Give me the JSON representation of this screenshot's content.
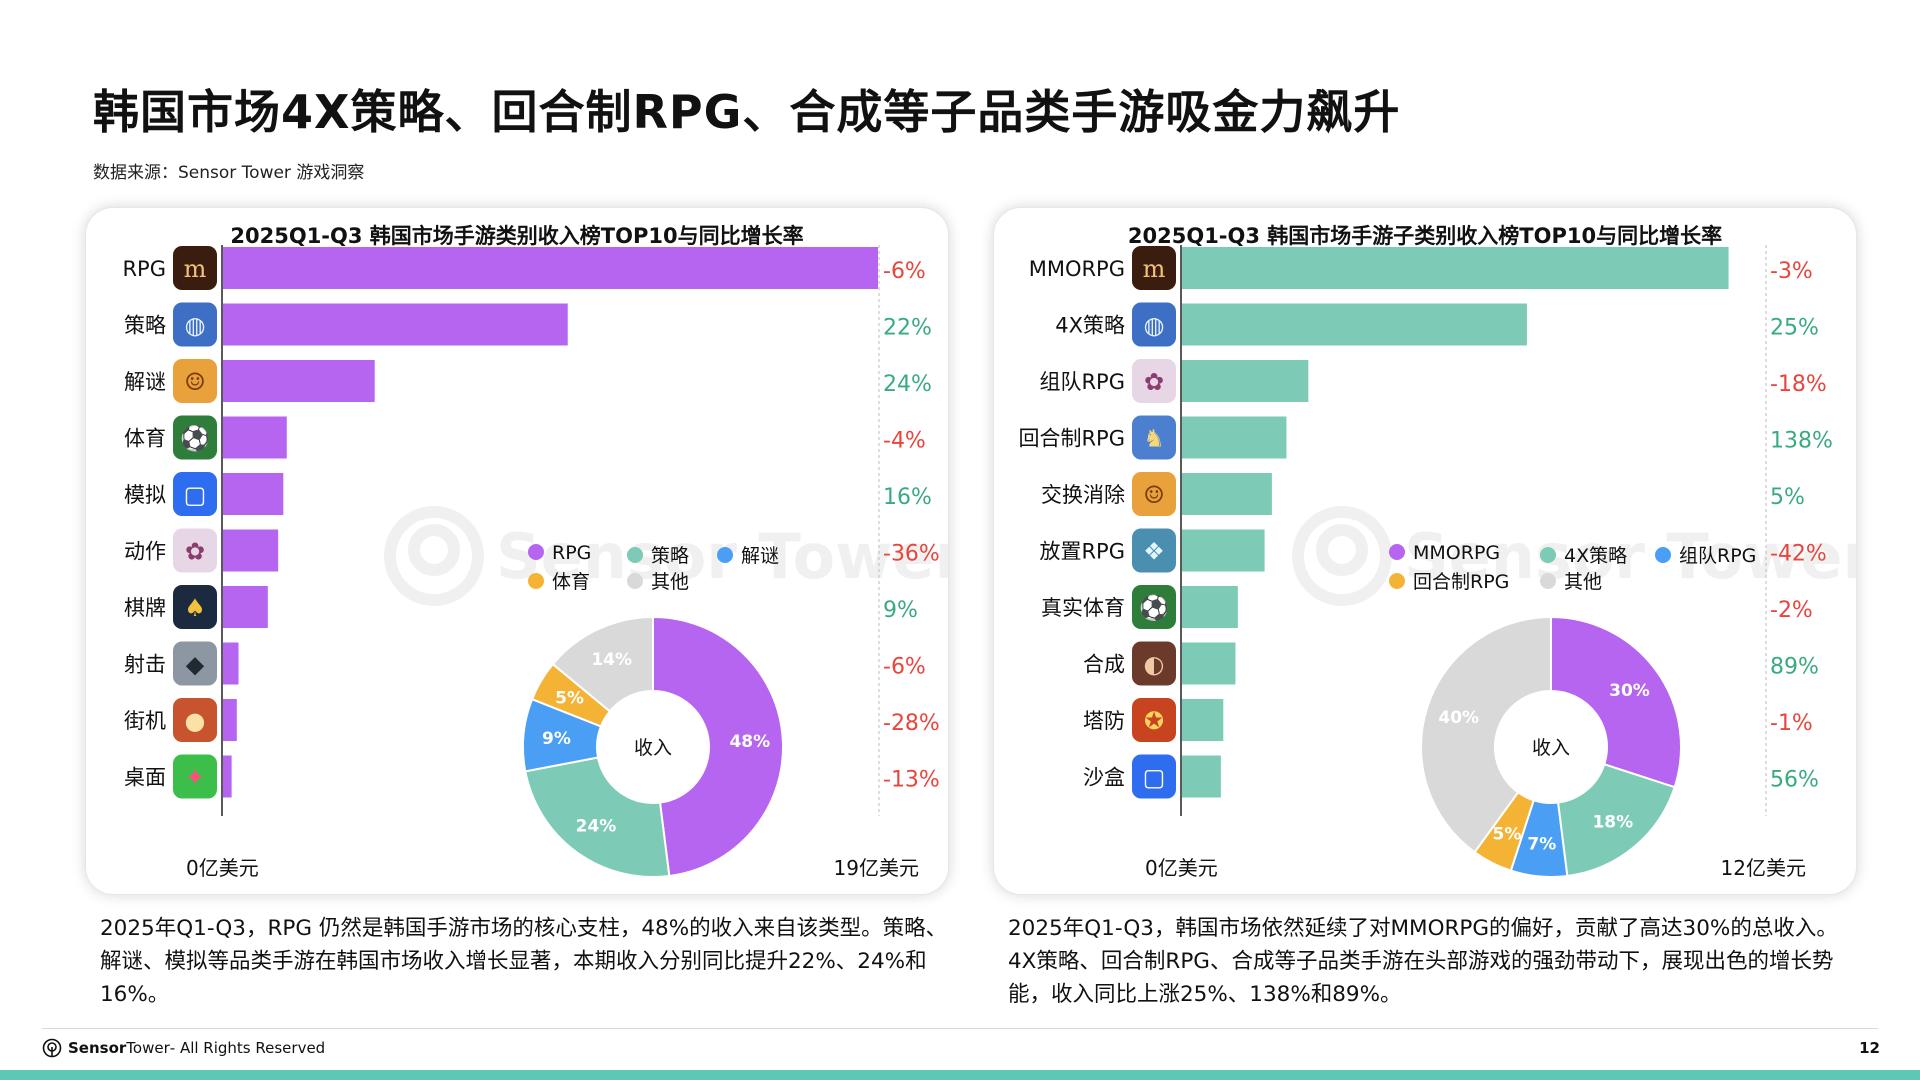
{
  "header": {
    "title": "韩国市场4X策略、回合制RPG、合成等子品类手游吸金力飙升",
    "source": "数据来源：Sensor Tower 游戏洞察"
  },
  "chart_data": [
    {
      "type": "bar",
      "title": "2025Q1-Q3 韩国市场手游类别收入榜TOP10与同比增长率",
      "categories": [
        "RPG",
        "策略",
        "解谜",
        "体育",
        "模拟",
        "动作",
        "棋牌",
        "射击",
        "街机",
        "桌面"
      ],
      "values": [
        19.0,
        10.0,
        4.4,
        1.85,
        1.75,
        1.6,
        1.3,
        0.45,
        0.4,
        0.25
      ],
      "growth": [
        "-6%",
        "22%",
        "24%",
        "-4%",
        "16%",
        "-36%",
        "9%",
        "-6%",
        "-28%",
        "-13%"
      ],
      "xlim": [
        0,
        19
      ],
      "axis_start_label": "0亿美元",
      "axis_end_label": "19亿美元",
      "bar_color": "#b565f0",
      "icons": [
        "legend-m-icon",
        "globe-icon",
        "hero-face-icon",
        "soccer-player-icon",
        "roblox-icon",
        "anime-girl-icon",
        "poker-icon",
        "soldier-icon",
        "cookie-icon",
        "green-monster-icon"
      ],
      "donut": {
        "type": "pie",
        "center_label": "收入",
        "slices": [
          {
            "name": "RPG",
            "value": 48,
            "label": "48%",
            "color": "#b565f0"
          },
          {
            "name": "策略",
            "value": 24,
            "label": "24%",
            "color": "#7dcbb6"
          },
          {
            "name": "解谜",
            "value": 9,
            "label": "9%",
            "color": "#4a9ff5"
          },
          {
            "name": "体育",
            "value": 5,
            "label": "5%",
            "color": "#f5b335"
          },
          {
            "name": "其他",
            "value": 14,
            "label": "14%",
            "color": "#d9d9d9"
          }
        ]
      }
    },
    {
      "type": "bar",
      "title": "2025Q1-Q3 韩国市场手游子类别收入榜TOP10与同比增长率",
      "categories": [
        "MMORPG",
        "4X策略",
        "组队RPG",
        "回合制RPG",
        "交换消除",
        "放置RPG",
        "真实体育",
        "合成",
        "塔防",
        "沙盒"
      ],
      "values": [
        11.25,
        7.1,
        2.6,
        2.15,
        1.85,
        1.7,
        1.15,
        1.1,
        0.85,
        0.8
      ],
      "growth": [
        "-3%",
        "25%",
        "-18%",
        "138%",
        "5%",
        "-42%",
        "-2%",
        "89%",
        "-1%",
        "56%"
      ],
      "xlim": [
        0,
        12
      ],
      "axis_start_label": "0亿美元",
      "axis_end_label": "12亿美元",
      "bar_color": "#7dcbb6",
      "icons": [
        "legend-m-icon",
        "globe-icon",
        "anime-girl-icon",
        "knight-icon",
        "hero-face-icon",
        "anime-boy-icon",
        "soccer-player-icon",
        "girl-portrait-icon",
        "warrior-icon",
        "roblox-icon"
      ],
      "donut": {
        "type": "pie",
        "center_label": "收入",
        "slices": [
          {
            "name": "MMORPG",
            "value": 30,
            "label": "30%",
            "color": "#b565f0"
          },
          {
            "name": "4X策略",
            "value": 18,
            "label": "18%",
            "color": "#7dcbb6"
          },
          {
            "name": "组队RPG",
            "value": 7,
            "label": "7%",
            "color": "#4a9ff5"
          },
          {
            "name": "回合制RPG",
            "value": 5,
            "label": "5%",
            "color": "#f5b335"
          },
          {
            "name": "其他",
            "value": 40,
            "label": "40%",
            "color": "#d9d9d9"
          }
        ]
      }
    }
  ],
  "colors": {
    "positive": "#3aaa80",
    "negative": "#e8453c",
    "watermark": "#f0f0f0"
  },
  "watermark": "Sensor Tower",
  "descriptions": [
    "2025年Q1-Q3，RPG 仍然是韩国手游市场的核心支柱，48%的收入来自该类型。策略、解谜、模拟等品类手游在韩国市场收入增长显著，本期收入分别同比提升22%、24%和16%。",
    "2025年Q1-Q3，韩国市场依然延续了对MMORPG的偏好，贡献了高达30%的总收入。4X策略、回合制RPG、合成等子品类手游在头部游戏的强劲带动下，展现出色的增长势能，收入同比上涨25%、138%和89%。"
  ],
  "footer": {
    "brand_a": "Sensor",
    "brand_b": "Tower",
    "rights": " - All Rights Reserved",
    "page": "12"
  }
}
